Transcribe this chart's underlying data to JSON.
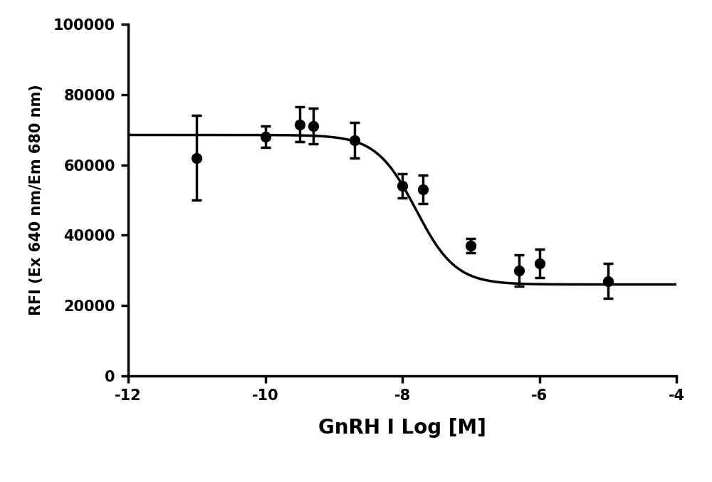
{
  "x_data": [
    -11.0,
    -10.0,
    -9.5,
    -9.3,
    -8.7,
    -8.0,
    -7.7,
    -7.0,
    -6.3,
    -6.0,
    -5.0
  ],
  "y_data": [
    62000,
    68000,
    71500,
    71000,
    67000,
    54000,
    53000,
    37000,
    30000,
    32000,
    27000
  ],
  "y_err": [
    12000,
    3000,
    5000,
    5000,
    5000,
    3500,
    4000,
    2000,
    4500,
    4000,
    5000
  ],
  "xlabel": "GnRH I Log [M]",
  "ylabel": "RFI (Ex 640 nm/Em 680 nm)",
  "xlim": [
    -12,
    -4
  ],
  "ylim": [
    0,
    100000
  ],
  "xticks": [
    -12,
    -10,
    -8,
    -6,
    -4
  ],
  "yticks": [
    0,
    20000,
    40000,
    60000,
    80000,
    100000
  ],
  "background_color": "#ffffff",
  "line_color": "#000000",
  "marker_color": "#000000",
  "xlabel_fontsize": 20,
  "ylabel_fontsize": 15,
  "tick_fontsize": 15,
  "top_max": 68500,
  "bottom_min": 26000,
  "ec50_log": -7.8,
  "hill_slope": 1.5
}
